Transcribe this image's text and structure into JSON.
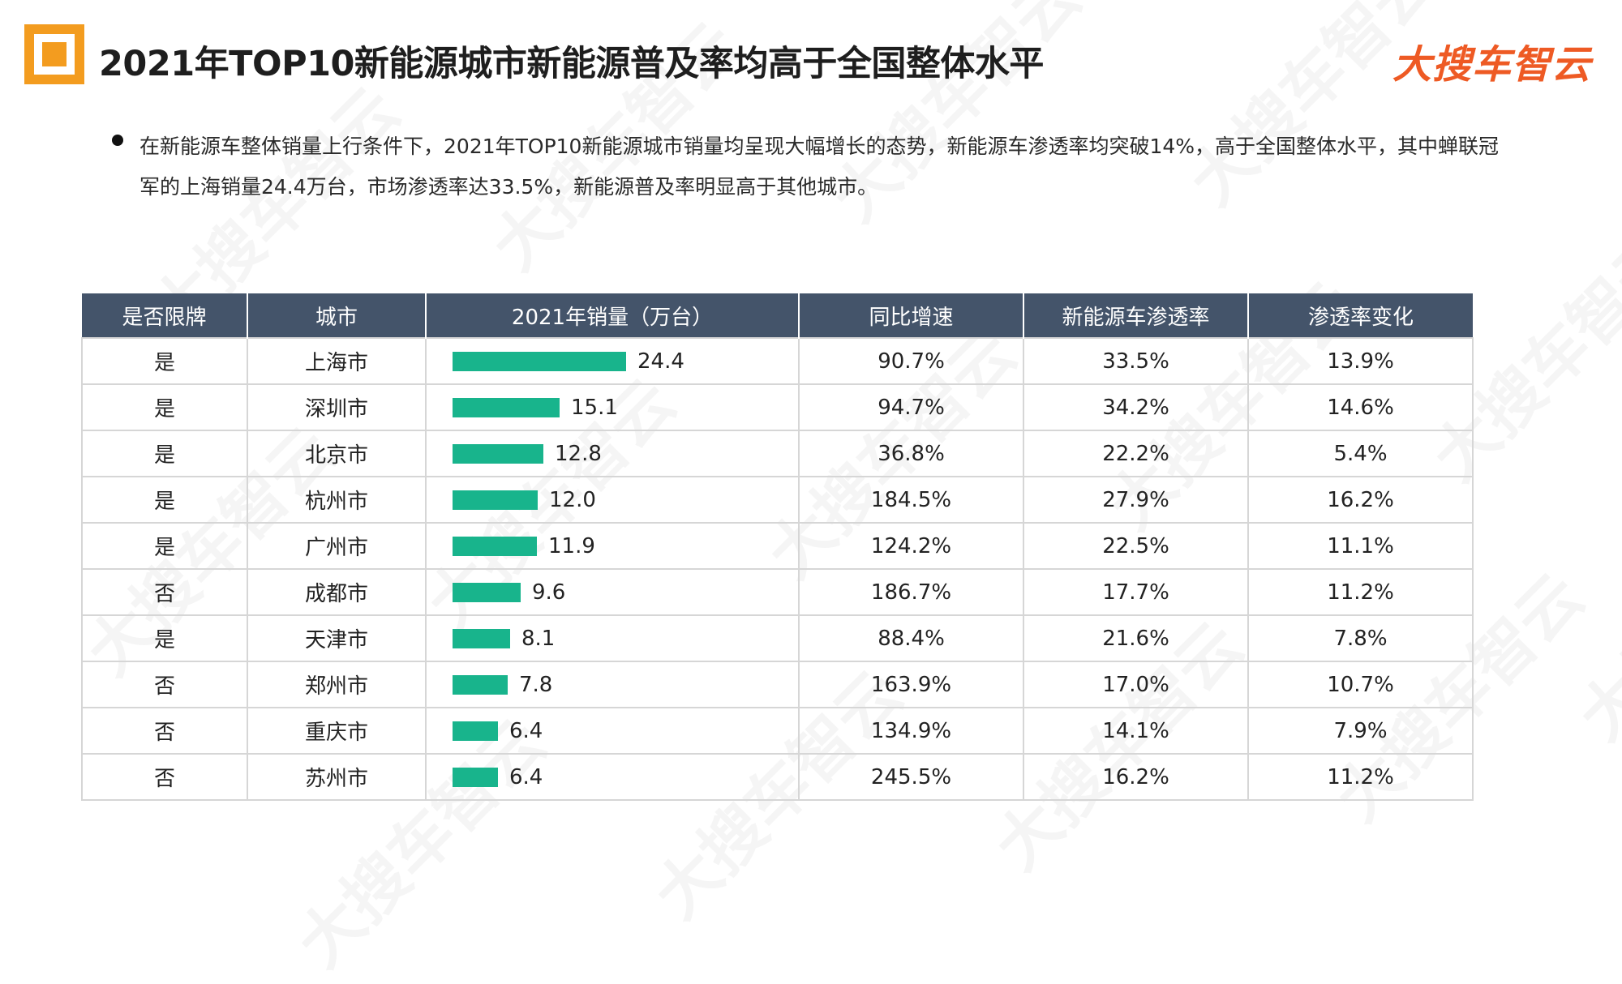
{
  "header": {
    "title": "2021年TOP10新能源城市新能源普及率均高于全国整体水平",
    "brand": "大搜车智云"
  },
  "intro": "在新能源车整体销量上行条件下，2021年TOP10新能源城市销量均呈现大幅增长的态势，新能源车渗透率均突破14%，高于全国整体水平，其中蝉联冠军的上海销量24.4万台，市场渗透率达33.5%，新能源普及率明显高于其他城市。",
  "table": {
    "headers": [
      "是否限牌",
      "城市",
      "2021年销量（万台）",
      "同比增速",
      "新能源车渗透率",
      "渗透率变化"
    ],
    "rows": [
      {
        "limit": "是",
        "city": "上海市",
        "sales": "24.4",
        "growth": "90.7%",
        "penetration": "33.5%",
        "change": "13.9%"
      },
      {
        "limit": "是",
        "city": "深圳市",
        "sales": "15.1",
        "growth": "94.7%",
        "penetration": "34.2%",
        "change": "14.6%"
      },
      {
        "limit": "是",
        "city": "北京市",
        "sales": "12.8",
        "growth": "36.8%",
        "penetration": "22.2%",
        "change": "5.4%"
      },
      {
        "limit": "是",
        "city": "杭州市",
        "sales": "12.0",
        "growth": "184.5%",
        "penetration": "27.9%",
        "change": "16.2%"
      },
      {
        "limit": "是",
        "city": "广州市",
        "sales": "11.9",
        "growth": "124.2%",
        "penetration": "22.5%",
        "change": "11.1%"
      },
      {
        "limit": "否",
        "city": "成都市",
        "sales": "9.6",
        "growth": "186.7%",
        "penetration": "17.7%",
        "change": "11.2%"
      },
      {
        "limit": "是",
        "city": "天津市",
        "sales": "8.1",
        "growth": "88.4%",
        "penetration": "21.6%",
        "change": "7.8%"
      },
      {
        "limit": "否",
        "city": "郑州市",
        "sales": "7.8",
        "growth": "163.9%",
        "penetration": "17.0%",
        "change": "10.7%"
      },
      {
        "limit": "否",
        "city": "重庆市",
        "sales": "6.4",
        "growth": "134.9%",
        "penetration": "14.1%",
        "change": "7.9%"
      },
      {
        "limit": "否",
        "city": "苏州市",
        "sales": "6.4",
        "growth": "245.5%",
        "penetration": "16.2%",
        "change": "11.2%"
      }
    ]
  },
  "colors": {
    "bar": "#18b48c",
    "header_bg": "#44546a",
    "brand": "#ee5a24",
    "logo": "#f39c1f"
  },
  "watermark_text": "大搜车智云"
}
